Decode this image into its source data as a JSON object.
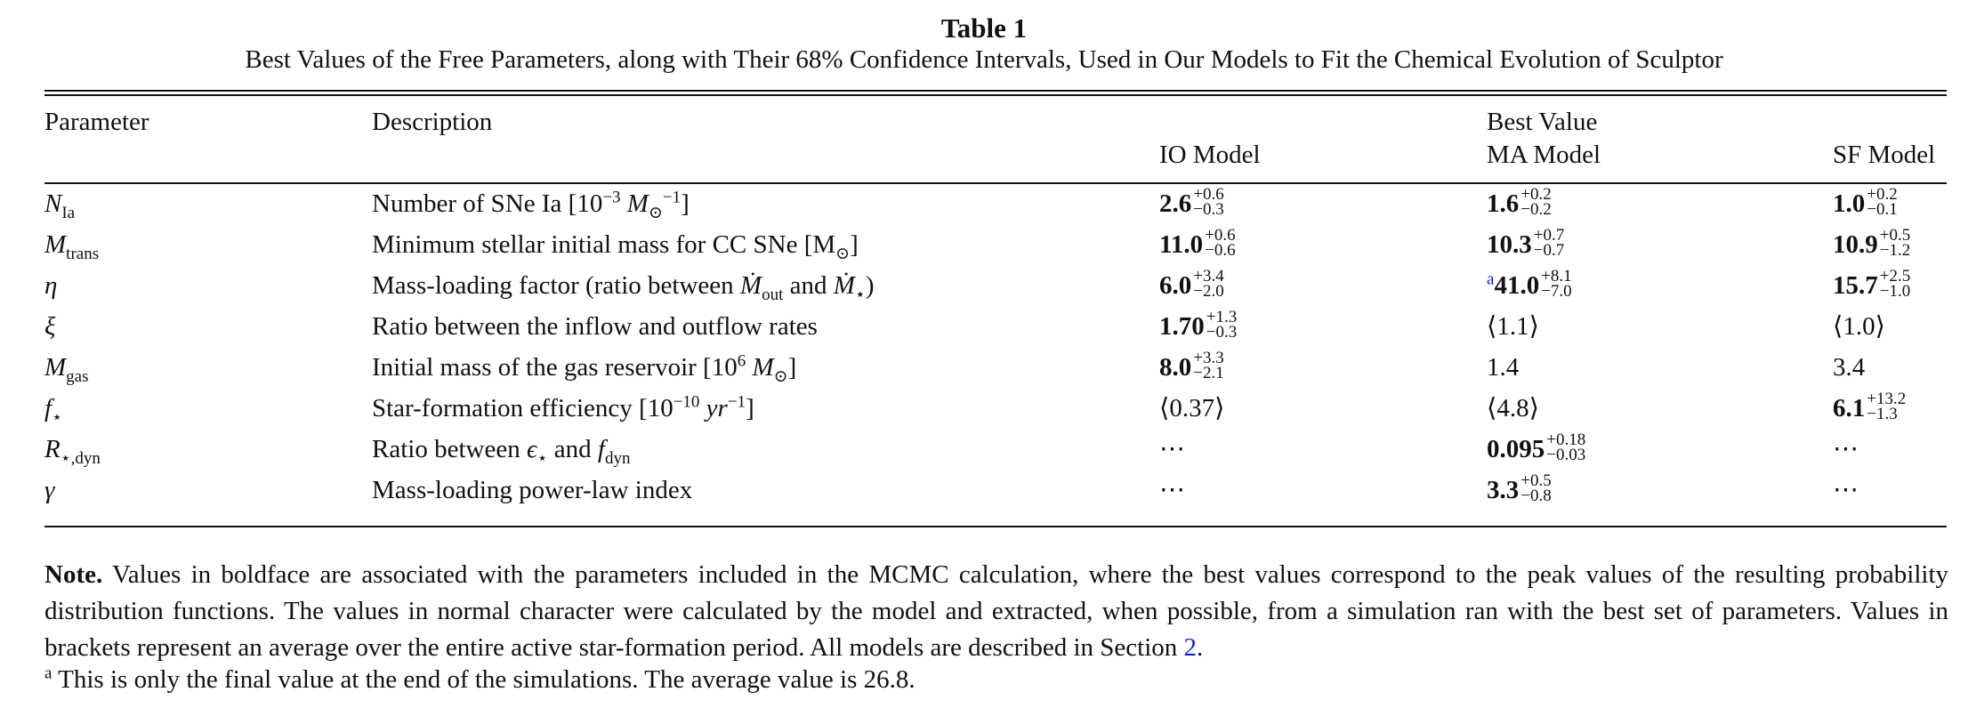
{
  "table": {
    "title": "Table 1",
    "caption": "Best Values of the Free Parameters, along with Their 68% Confidence Intervals, Used in Our Models to Fit the Chemical Evolution of Sculptor",
    "headers": {
      "parameter": "Parameter",
      "description": "Description",
      "best_value": "Best Value",
      "io": "IO Model",
      "ma": "MA Model",
      "sf": "SF Model"
    },
    "rows": [
      {
        "param": "N",
        "param_sub": "Ia",
        "desc_pre": "Number of SNe Ia [10",
        "desc_sup": "−3",
        "desc_mid": " M",
        "desc_sub": "⊙",
        "desc_sup2": "−1",
        "desc_post": "]",
        "io": {
          "v": "2.6",
          "up": "+0.6",
          "dn": "−0.3"
        },
        "ma": {
          "v": "1.6",
          "up": "+0.2",
          "dn": "−0.2"
        },
        "sf": {
          "v": "1.0",
          "up": "+0.2",
          "dn": "−0.1"
        }
      },
      {
        "param": "M",
        "param_sub": "trans",
        "desc_pre": "Minimum stellar initial mass for CC SNe [M",
        "desc_sub": "⊙",
        "desc_post": "]",
        "io": {
          "v": "11.0",
          "up": "+0.6",
          "dn": "−0.6"
        },
        "ma": {
          "v": "10.3",
          "up": "+0.7",
          "dn": "−0.7"
        },
        "sf": {
          "v": "10.9",
          "up": "+0.5",
          "dn": "−1.2"
        }
      },
      {
        "param": "η",
        "desc_pre": "Mass-loading factor (ratio between ",
        "desc_m1": "Ṁ",
        "desc_m1_sub": "out",
        "desc_and": " and ",
        "desc_m2": "Ṁ",
        "desc_m2_sub": "⋆",
        "desc_post": ")",
        "io": {
          "v": "6.0",
          "up": "+3.4",
          "dn": "−2.0"
        },
        "ma": {
          "mark": "a",
          "v": "41.0",
          "up": "+8.1",
          "dn": "−7.0"
        },
        "sf": {
          "v": "15.7",
          "up": "+2.5",
          "dn": "−1.0"
        }
      },
      {
        "param": "ξ",
        "desc": "Ratio between the inflow and outflow rates",
        "io": {
          "v": "1.70",
          "up": "+1.3",
          "dn": "−0.3"
        },
        "ma": {
          "plain": "⟨1.1⟩"
        },
        "sf": {
          "plain": "⟨1.0⟩"
        }
      },
      {
        "param": "M",
        "param_sub": "gas",
        "desc_pre": "Initial mass of the gas reservoir [10",
        "desc_sup": "6",
        "desc_mid": " M",
        "desc_sub": "⊙",
        "desc_post": "]",
        "io": {
          "v": "8.0",
          "up": "+3.3",
          "dn": "−2.1"
        },
        "ma": {
          "plain": "1.4"
        },
        "sf": {
          "plain": "3.4"
        }
      },
      {
        "param": "f",
        "param_sub": "⋆",
        "desc_pre": "Star-formation efficiency [10",
        "desc_sup": "−10",
        "desc_mid": " yr",
        "desc_sup2": "−1",
        "desc_post": "]",
        "io": {
          "plain": "⟨0.37⟩"
        },
        "ma": {
          "plain": "⟨4.8⟩"
        },
        "sf": {
          "v": "6.1",
          "up": "+13.2",
          "dn": "−1.3"
        }
      },
      {
        "param": "R",
        "param_sub": "⋆,dyn",
        "desc_pre": "Ratio between ",
        "desc_eps": "ϵ",
        "desc_eps_sub": "⋆",
        "desc_and": " and ",
        "desc_f": "f",
        "desc_f_sub": "dyn",
        "io": {
          "plain": "⋯"
        },
        "ma": {
          "v": "0.095",
          "up": "+0.18",
          "dn": "−0.03"
        },
        "sf": {
          "plain": "⋯"
        }
      },
      {
        "param": "γ",
        "desc": "Mass-loading power-law index",
        "io": {
          "plain": "⋯"
        },
        "ma": {
          "v": "3.3",
          "up": "+0.5",
          "dn": "−0.8"
        },
        "sf": {
          "plain": "⋯"
        }
      }
    ],
    "note_label": "Note.",
    "note_text_1": " Values in boldface are associated with the parameters included in the MCMC calculation, where the best values correspond to the peak values of the resulting probability distribution functions. The values in normal character were calculated by the model and extracted, when possible, from a simulation ran with the best set of parameters. Values in brackets represent an average over the entire active star-formation period. All models are described in Section ",
    "note_link": "2",
    "note_text_2": ".",
    "footnote_mark": "a",
    "footnote_text": " This is only the final value at the end of the simulations. The average value is 26.8.",
    "colors": {
      "link": "#1a1ad6",
      "text": "#111111"
    }
  }
}
